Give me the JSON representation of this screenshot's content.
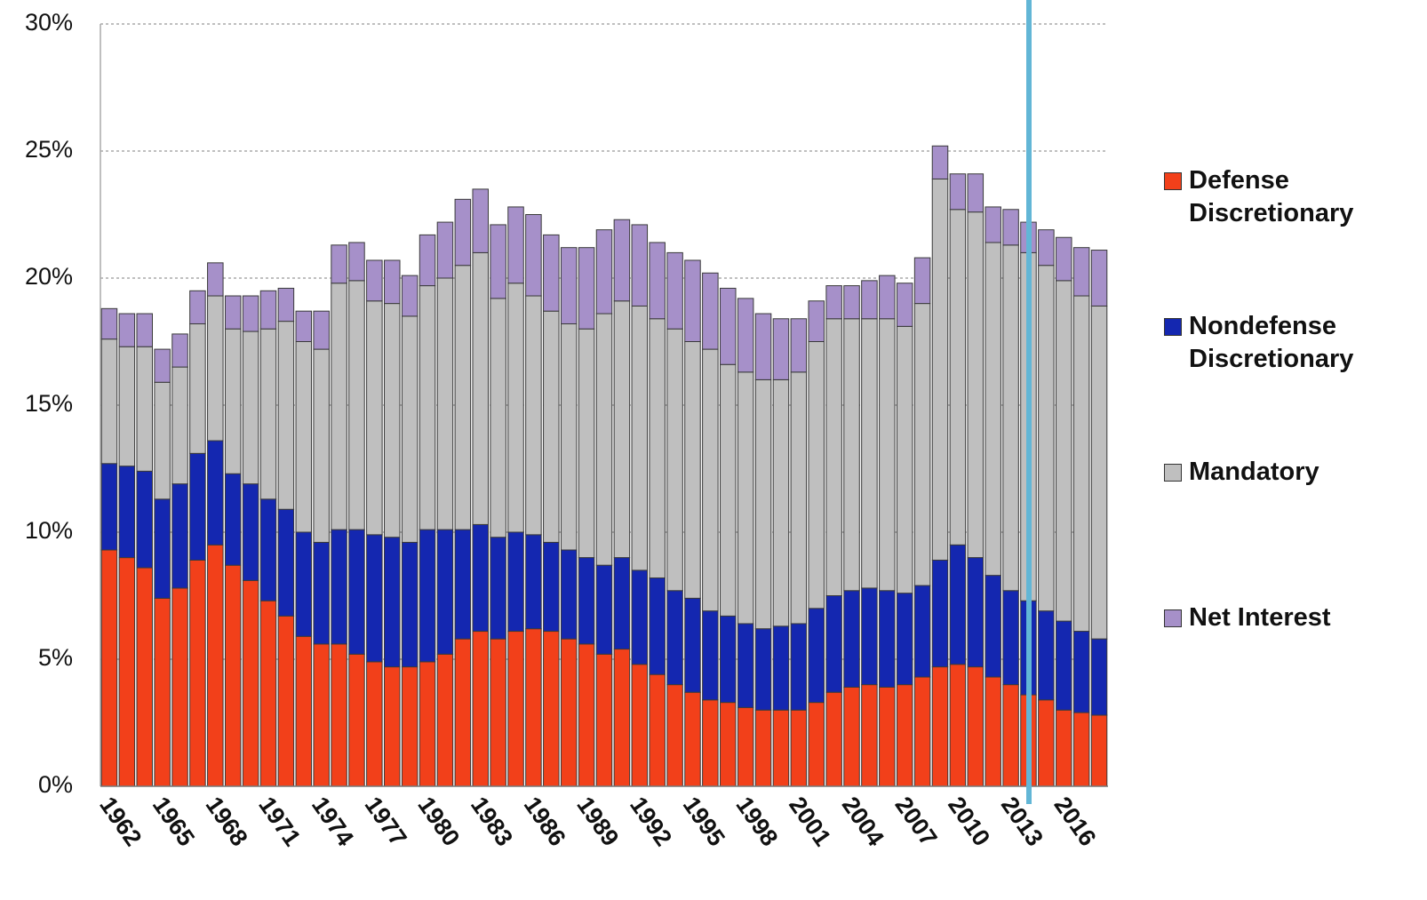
{
  "chart_data": {
    "type": "stacked-bar",
    "categories": [
      "1962",
      null,
      null,
      "1965",
      null,
      null,
      "1968",
      null,
      null,
      "1971",
      null,
      null,
      "1974",
      null,
      null,
      "1977",
      null,
      null,
      "1980",
      null,
      null,
      "1983",
      null,
      null,
      "1986",
      null,
      null,
      "1989",
      null,
      null,
      "1992",
      null,
      null,
      "1995",
      null,
      null,
      "1998",
      null,
      null,
      "2001",
      null,
      null,
      "2004",
      null,
      null,
      "2007",
      null,
      null,
      "2010",
      null,
      null,
      "2013",
      null,
      null,
      "2016",
      null,
      null
    ],
    "series": [
      {
        "name": "Defense Discretionary",
        "color": "#f2401a",
        "values": [
          9.3,
          9.0,
          8.6,
          7.4,
          7.8,
          8.9,
          9.5,
          8.7,
          8.1,
          7.3,
          6.7,
          5.9,
          5.6,
          5.6,
          5.2,
          4.9,
          4.7,
          4.7,
          4.9,
          5.2,
          5.8,
          6.1,
          5.8,
          6.1,
          6.2,
          6.1,
          5.8,
          5.6,
          5.2,
          5.4,
          4.8,
          4.4,
          4.0,
          3.7,
          3.4,
          3.3,
          3.1,
          3.0,
          3.0,
          3.0,
          3.3,
          3.7,
          3.9,
          4.0,
          3.9,
          4.0,
          4.3,
          4.7,
          4.8,
          4.7,
          4.3,
          4.0,
          3.6,
          3.4,
          3.0,
          2.9,
          2.8
        ]
      },
      {
        "name": "Nondefense Discretionary",
        "color": "#1427b0",
        "values": [
          3.4,
          3.6,
          3.8,
          3.9,
          4.1,
          4.2,
          4.1,
          3.6,
          3.8,
          4.0,
          4.2,
          4.1,
          4.0,
          4.5,
          4.9,
          5.0,
          5.1,
          4.9,
          5.2,
          4.9,
          4.3,
          4.2,
          4.0,
          3.9,
          3.7,
          3.5,
          3.5,
          3.4,
          3.5,
          3.6,
          3.7,
          3.8,
          3.7,
          3.7,
          3.5,
          3.4,
          3.3,
          3.2,
          3.3,
          3.4,
          3.7,
          3.8,
          3.8,
          3.8,
          3.8,
          3.6,
          3.6,
          4.2,
          4.7,
          4.3,
          4.0,
          3.7,
          3.7,
          3.5,
          3.5,
          3.2,
          3.0
        ]
      },
      {
        "name": "Mandatory",
        "color": "#bfbfbf",
        "values": [
          4.9,
          4.7,
          4.9,
          4.6,
          4.6,
          5.1,
          5.7,
          5.7,
          6.0,
          6.7,
          7.4,
          7.5,
          7.6,
          9.7,
          9.8,
          9.2,
          9.2,
          8.9,
          9.6,
          9.9,
          10.4,
          10.7,
          9.4,
          9.8,
          9.4,
          9.1,
          8.9,
          9.0,
          9.9,
          10.1,
          10.4,
          10.2,
          10.3,
          10.1,
          10.3,
          9.9,
          9.9,
          9.8,
          9.7,
          9.9,
          10.5,
          10.9,
          10.7,
          10.6,
          10.7,
          10.5,
          11.1,
          15.0,
          13.2,
          13.6,
          13.1,
          13.6,
          13.7,
          13.6,
          13.4,
          13.2,
          13.1
        ]
      },
      {
        "name": "Net Interest",
        "color": "#a690c9",
        "values": [
          1.2,
          1.3,
          1.3,
          1.3,
          1.3,
          1.3,
          1.3,
          1.3,
          1.4,
          1.5,
          1.3,
          1.2,
          1.5,
          1.5,
          1.5,
          1.6,
          1.7,
          1.6,
          2.0,
          2.2,
          2.6,
          2.5,
          2.9,
          3.0,
          3.2,
          3.0,
          3.0,
          3.2,
          3.3,
          3.2,
          3.2,
          3.0,
          3.0,
          3.2,
          3.0,
          3.0,
          2.9,
          2.6,
          2.4,
          2.1,
          1.6,
          1.3,
          1.3,
          1.5,
          1.7,
          1.7,
          1.8,
          1.3,
          1.4,
          1.5,
          1.4,
          1.4,
          1.2,
          1.4,
          1.7,
          1.9,
          2.2
        ]
      }
    ],
    "ylim": [
      0,
      30
    ],
    "yticks": [
      {
        "value": 0,
        "label": "0%"
      },
      {
        "value": 5,
        "label": "5%"
      },
      {
        "value": 10,
        "label": "10%"
      },
      {
        "value": 15,
        "label": "15%"
      },
      {
        "value": 20,
        "label": "20%"
      },
      {
        "value": 25,
        "label": "25%"
      },
      {
        "value": 30,
        "label": "30%"
      }
    ],
    "grid": true,
    "legend": "right"
  }
}
